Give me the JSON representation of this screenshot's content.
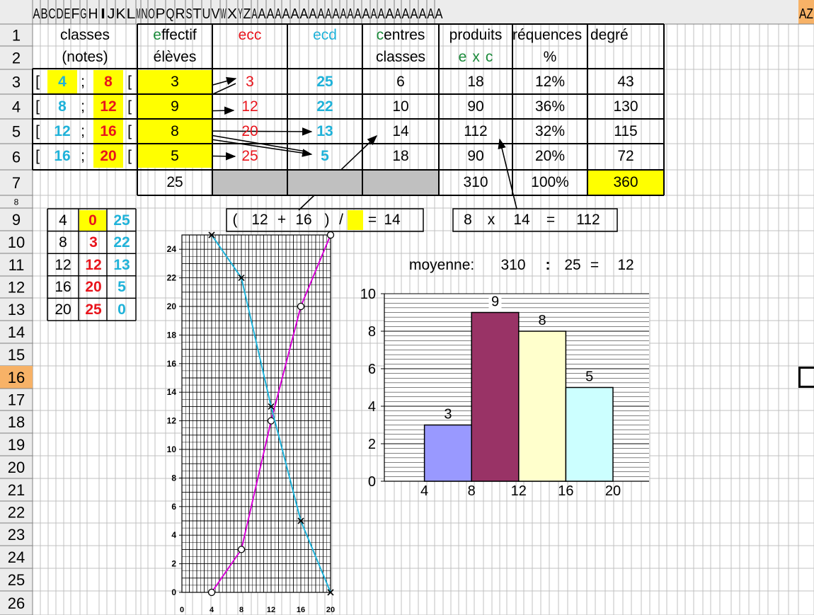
{
  "column_headers": [
    "A",
    "B",
    "C",
    "D",
    "E",
    "F",
    "G",
    "H",
    "I",
    "J",
    "K",
    "L",
    "M",
    "N",
    "O",
    "P",
    "Q",
    "R",
    "S",
    "T",
    "U",
    "V",
    "W",
    "X",
    "Y",
    "Z",
    "AA",
    "AI",
    "AI",
    "AI",
    "AI",
    "AI",
    "AI",
    "AI",
    "AI",
    "AI",
    "AI",
    "AI",
    "AI",
    "AI",
    "AI",
    "AI",
    "AI",
    "AI",
    "AI",
    "AI",
    "AI",
    "AI",
    "AI",
    "AI"
  ],
  "column_header_display": [
    "A",
    "B",
    "C",
    "D",
    "E",
    "F",
    "G",
    "H",
    "I",
    "J",
    "K",
    "L",
    "M",
    "N",
    "O",
    "P",
    "Q",
    "R",
    "S",
    "T",
    "U",
    "V",
    "W",
    "X",
    "Y",
    "Z",
    "A",
    "A",
    "A",
    "A",
    "A",
    "A",
    "A",
    "A",
    "A",
    "A",
    "A",
    "A",
    "A",
    "A",
    "A",
    "A",
    "A",
    "A",
    "A",
    "A",
    "A",
    "A",
    "A",
    "A"
  ],
  "row_headers": [
    "1",
    "2",
    "3",
    "4",
    "5",
    "6",
    "7",
    "8",
    "9",
    "10",
    "11",
    "12",
    "13",
    "14",
    "15",
    "16",
    "17",
    "18",
    "19",
    "20",
    "21",
    "22",
    "23",
    "24",
    "25",
    "26"
  ],
  "active_row": "16",
  "table_header": {
    "classes": "classes",
    "notes": "(notes)",
    "effectif_first": "e",
    "effectif_rest": "ffectif",
    "eleves": "élèves",
    "ecc": "ecc",
    "ecd": "ecd",
    "centres_first": "c",
    "centres_rest": "entres",
    "classes2": "classes",
    "produits": "produits",
    "exc_e": "e",
    "exc_x": "x",
    "exc_c": "c",
    "frequences": "réquences",
    "percent": "%",
    "degre": "degré"
  },
  "rows": [
    {
      "open": "[",
      "lo": "4",
      "sep": ";",
      "hi": "8",
      "close": "[",
      "effectif": "3",
      "ecc": "3",
      "ecd": "25",
      "centre": "6",
      "produit": "18",
      "freq": "12%",
      "degre": "43"
    },
    {
      "open": "[",
      "lo": "8",
      "sep": ";",
      "hi": "12",
      "close": "[",
      "effectif": "9",
      "ecc": "12",
      "ecd": "22",
      "centre": "10",
      "produit": "90",
      "freq": "36%",
      "degre": "130"
    },
    {
      "open": "[",
      "lo": "12",
      "sep": ";",
      "hi": "16",
      "close": "[",
      "effectif": "8",
      "ecc": "20",
      "ecd": "13",
      "centre": "14",
      "produit": "112",
      "freq": "32%",
      "degre": "115"
    },
    {
      "open": "[",
      "lo": "16",
      "sep": ";",
      "hi": "20",
      "close": "[",
      "effectif": "5",
      "ecc": "25",
      "ecd": "5",
      "centre": "18",
      "produit": "90",
      "freq": "20%",
      "degre": "72"
    }
  ],
  "totals": {
    "effectif": "25",
    "produit": "310",
    "freq": "100%",
    "degre": "360"
  },
  "formula_centre": {
    "open": "(",
    "a": "12",
    "plus": "+",
    "b": "16",
    "close": ")",
    "div": "/",
    "eq": "=",
    "result": "14"
  },
  "formula_produit": {
    "a": "8",
    "x": "x",
    "b": "14",
    "eq": "=",
    "result": "112"
  },
  "mini_table": [
    {
      "n": "4",
      "ecc": "0",
      "ecd": "25"
    },
    {
      "n": "8",
      "ecc": "3",
      "ecd": "22"
    },
    {
      "n": "12",
      "ecc": "12",
      "ecd": "13"
    },
    {
      "n": "16",
      "ecc": "20",
      "ecd": "5"
    },
    {
      "n": "20",
      "ecc": "25",
      "ecd": "0"
    }
  ],
  "moyenne": {
    "label": "moyenne:",
    "sum": "310",
    "op": ":",
    "count": "25",
    "eq": "=",
    "result": "12"
  },
  "colors": {
    "yellow": "#ffff00",
    "gray": "#c0c0c0",
    "red": "#e8141c",
    "cyan": "#1fb2d9",
    "green": "#1a8a3a",
    "magenta": "#d600d6",
    "teal_line": "#1fb2d9",
    "active_header": "#f7b267"
  },
  "chart_data": [
    {
      "type": "line",
      "x": [
        4,
        8,
        12,
        16,
        20
      ],
      "series": [
        {
          "values": [
            0,
            3,
            12,
            20,
            25
          ],
          "marker": "circle",
          "color": "#d600d6"
        },
        {
          "values": [
            25,
            22,
            13,
            5,
            0
          ],
          "marker": "x",
          "color": "#1fb2d9"
        }
      ],
      "xticks": [
        "0",
        "4",
        "8",
        "12",
        "16",
        "20"
      ],
      "yticks": [
        "0",
        "2",
        "4",
        "6",
        "8",
        "10",
        "12",
        "14",
        "16",
        "18",
        "20",
        "22",
        "24"
      ],
      "xlim": [
        0,
        20
      ],
      "ylim": [
        0,
        25
      ],
      "grid": true
    },
    {
      "type": "bar",
      "categories_edges": [
        "4",
        "8",
        "12",
        "16",
        "20"
      ],
      "x_left": [
        4,
        8,
        12,
        16
      ],
      "values": [
        3,
        9,
        8,
        5
      ],
      "data_labels": [
        "3",
        "9",
        "8",
        "5"
      ],
      "colors": [
        "#9999ff",
        "#993366",
        "#ffffcc",
        "#ccffff"
      ],
      "yticks": [
        "0",
        "2",
        "4",
        "6",
        "8",
        "10"
      ],
      "ylim": [
        0,
        10
      ],
      "xlim": [
        0,
        22
      ],
      "grid": true
    }
  ]
}
